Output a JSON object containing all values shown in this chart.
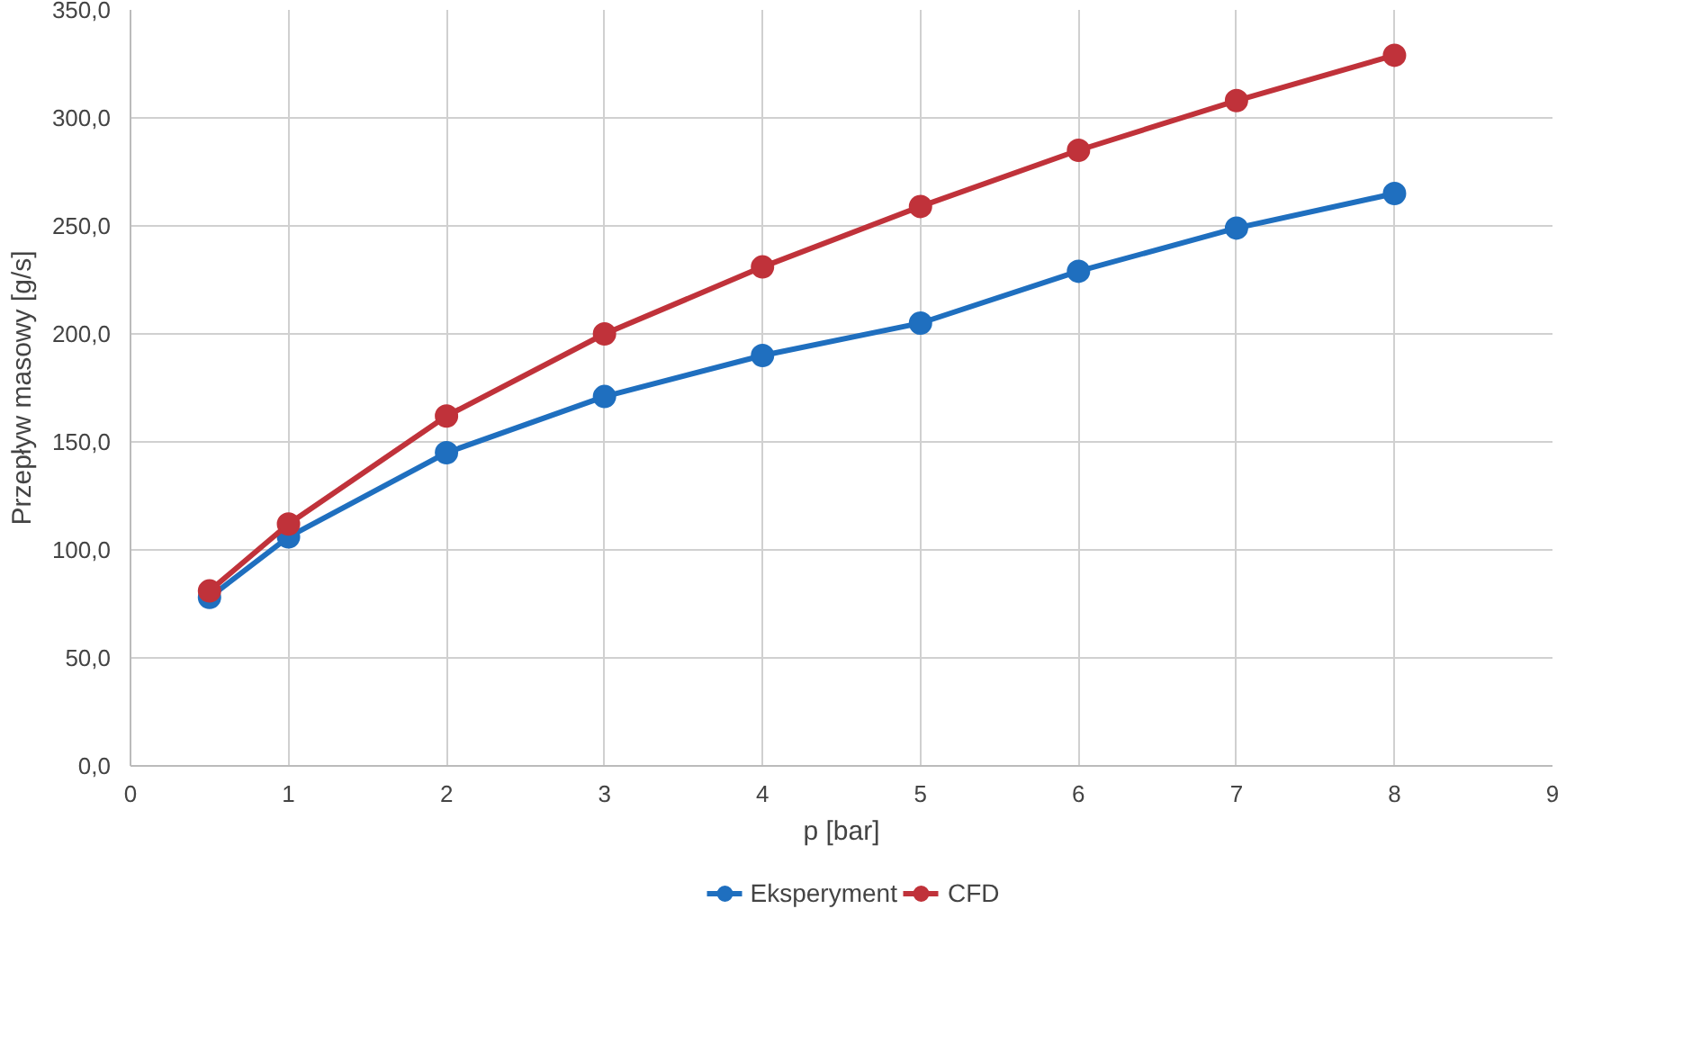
{
  "chart_data": {
    "type": "line",
    "xlabel": "p [bar]",
    "ylabel": "Przepływ masowy [g/s]",
    "x": [
      0.5,
      1,
      2,
      3,
      4,
      5,
      6,
      7,
      8
    ],
    "series": [
      {
        "name": "Eksperyment",
        "color": "#1f6fbf",
        "values": [
          78,
          106,
          145,
          171,
          190,
          205,
          229,
          249,
          265
        ]
      },
      {
        "name": "CFD",
        "color": "#c0323a",
        "values": [
          81,
          112,
          162,
          200,
          231,
          259,
          285,
          308,
          329
        ]
      }
    ],
    "xlim": [
      0,
      9
    ],
    "xticks": [
      0,
      1,
      2,
      3,
      4,
      5,
      6,
      7,
      8,
      9
    ],
    "ylim": [
      0,
      350
    ],
    "yticks": [
      {
        "value": 0,
        "label": "0,0"
      },
      {
        "value": 50,
        "label": "50,0"
      },
      {
        "value": 100,
        "label": "100,0"
      },
      {
        "value": 150,
        "label": "150,0"
      },
      {
        "value": 200,
        "label": "200,0"
      },
      {
        "value": 250,
        "label": "250,0"
      },
      {
        "value": 300,
        "label": "300,0"
      },
      {
        "value": 350,
        "label": "350,0"
      }
    ],
    "grid": true,
    "legend": "bottom",
    "marker": "circle",
    "line_style": "solid"
  }
}
